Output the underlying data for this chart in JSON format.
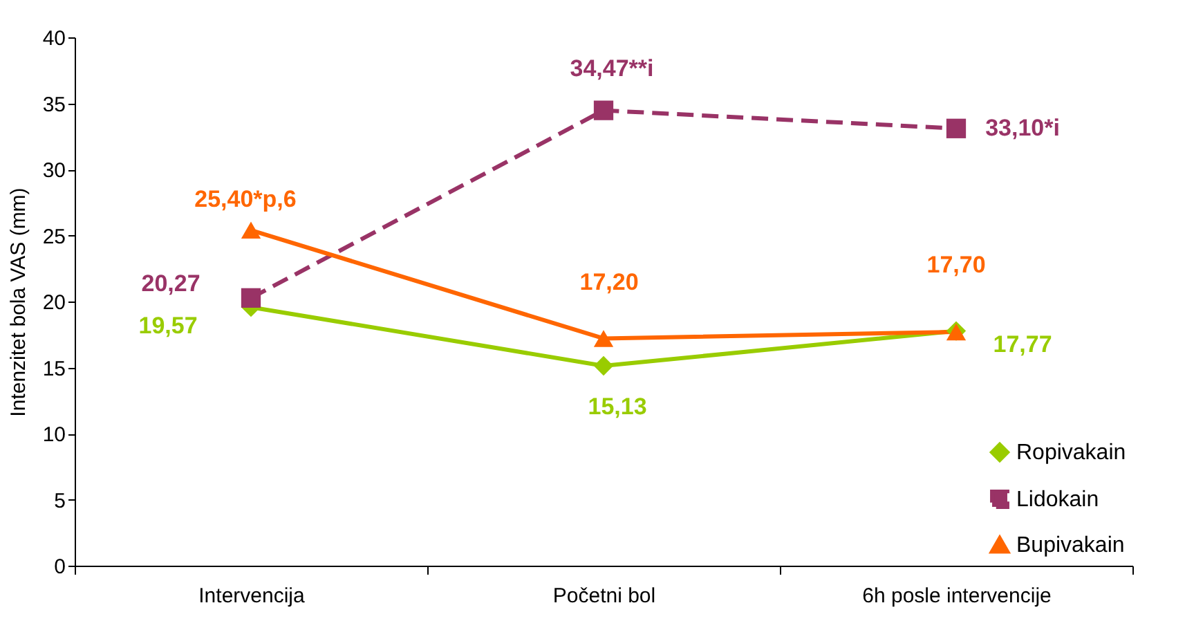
{
  "chart_data": {
    "type": "line",
    "ylabel": "Intenzitet bola VAS (mm)",
    "categories": [
      "Intervencija",
      "Početni bol",
      "6h posle intervencije"
    ],
    "series": [
      {
        "name": "Ropivakain",
        "color": "#99cc00",
        "marker": "diamond",
        "line_style": "solid",
        "values": [
          19.57,
          15.13,
          17.77
        ],
        "value_labels": [
          "19,57",
          "15,13",
          "17,77"
        ]
      },
      {
        "name": "Lidokain",
        "color": "#993366",
        "marker": "square",
        "line_style": "dashed",
        "values": [
          20.27,
          34.47,
          33.1
        ],
        "value_labels": [
          "20,27",
          "34,47**i",
          "33,10*i"
        ]
      },
      {
        "name": "Bupivakain",
        "color": "#ff6600",
        "marker": "triangle",
        "line_style": "solid",
        "values": [
          25.4,
          17.2,
          17.7
        ],
        "value_labels": [
          "25,40*p,6",
          "17,20",
          "17,70"
        ]
      }
    ],
    "ylim": [
      0,
      40
    ],
    "yticks": [
      0,
      5,
      10,
      15,
      20,
      25,
      30,
      35,
      40
    ],
    "grid": false,
    "legend": "bottom right"
  }
}
